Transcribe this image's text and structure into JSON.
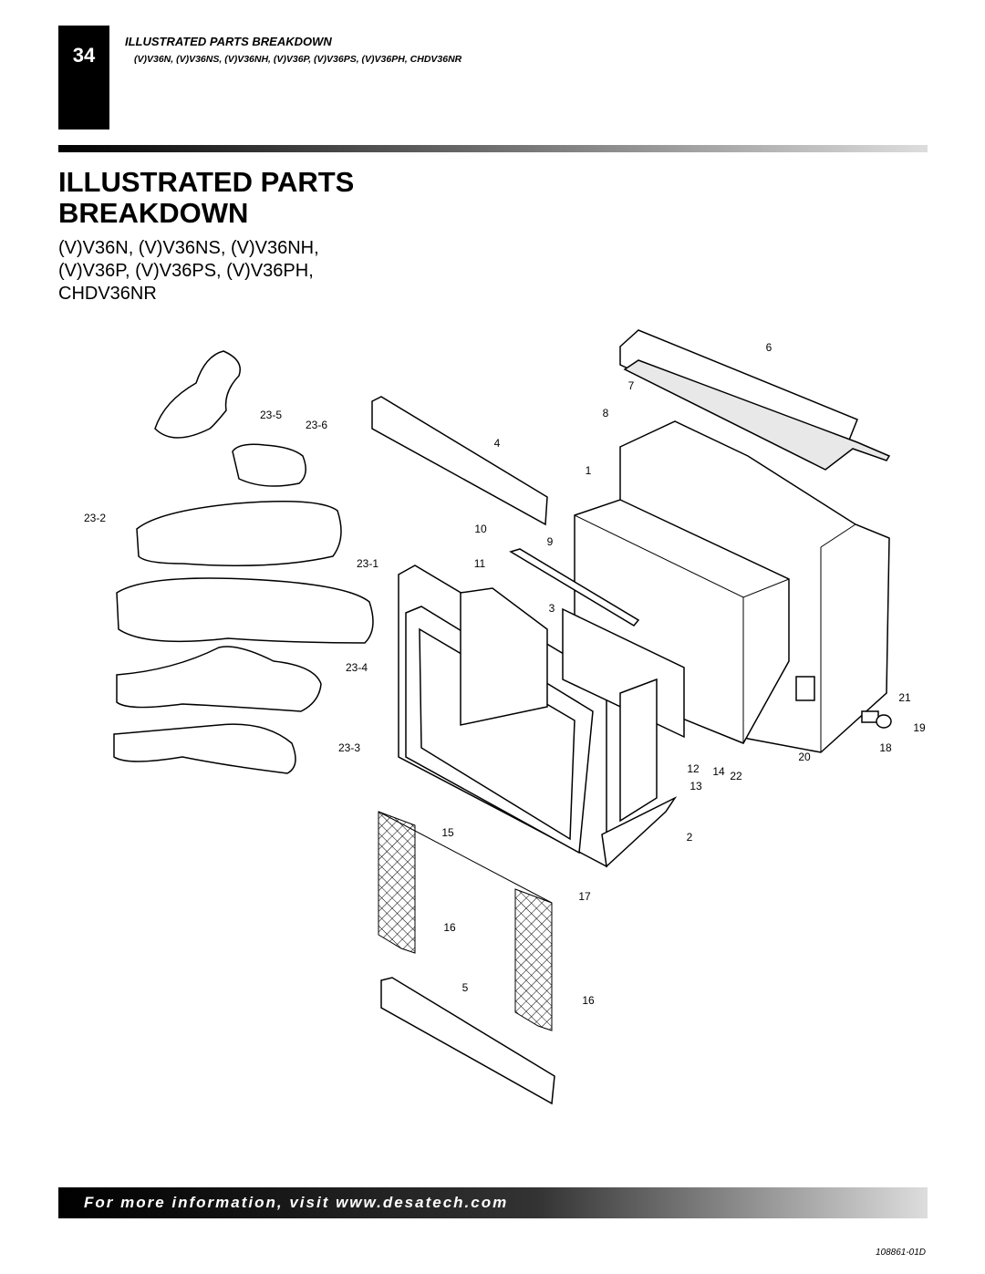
{
  "header": {
    "page_number": "34",
    "section": "ILLUSTRATED PARTS BREAKDOWN",
    "models": "(V)V36N, (V)V36NS, (V)V36NH, (V)V36P, (V)V36PS, (V)V36PH, CHDV36NR"
  },
  "title": {
    "lines": [
      "ILLUSTRATED PARTS",
      "BREAKDOWN"
    ]
  },
  "subtitle": {
    "lines": [
      "(V)V36N, (V)V36NS, (V)V36NH,",
      "(V)V36P, (V)V36PS, (V)V36PH,",
      "CHDV36NR"
    ]
  },
  "callouts": [
    "6",
    "7",
    "8",
    "23-5",
    "23-6",
    "4",
    "1",
    "23-2",
    "10",
    "9",
    "23-1",
    "11",
    "3",
    "23-4",
    "21",
    "19",
    "23-3",
    "18",
    "20",
    "12",
    "14",
    "22",
    "13",
    "15",
    "2",
    "17",
    "16",
    "5",
    "16"
  ],
  "footer": {
    "link": "For more information, visit www.desatech.com",
    "doc_number": "108861-01D"
  }
}
